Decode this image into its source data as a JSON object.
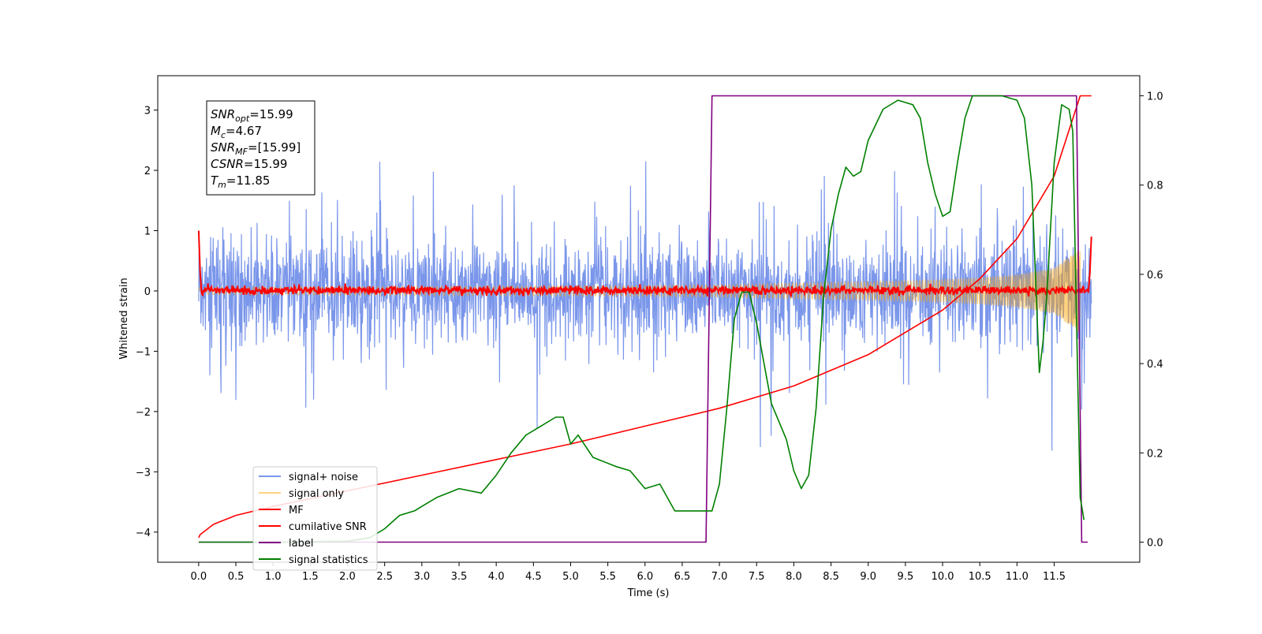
{
  "chart_data": {
    "type": "line",
    "xlabel": "Time (s)",
    "ylabel": "Whitened strain",
    "xlim": [
      -0.55,
      12.65
    ],
    "ylim": [
      -4.5,
      3.57
    ],
    "y2lim": [
      -0.045,
      1.045
    ],
    "xticks": [
      "0.0",
      "0.5",
      "1.0",
      "1.5",
      "2.0",
      "2.5",
      "3.0",
      "3.5",
      "4.0",
      "4.5",
      "5.0",
      "5.5",
      "6.0",
      "6.5",
      "7.0",
      "7.5",
      "8.0",
      "8.5",
      "9.0",
      "9.5",
      "10.0",
      "10.5",
      "11.0",
      "11.5"
    ],
    "yticks": [
      "3",
      "2",
      "1",
      "0",
      "−1",
      "−2",
      "−3",
      "−4"
    ],
    "y2ticks": [
      "1.0",
      "0.8",
      "0.6",
      "0.4",
      "0.2",
      "0.0"
    ],
    "grid": false,
    "legend_position": "lower-left",
    "info_box": {
      "lines": [
        {
          "sym": "SNR",
          "sub": "opt",
          "value": "=15.99"
        },
        {
          "sym": "M",
          "sub": "c",
          "value": "=4.67"
        },
        {
          "sym": "SNR",
          "sub": "MF",
          "value": "=[15.99]"
        },
        {
          "sym": "CSNR",
          "sub": "",
          "value": "=15.99"
        },
        {
          "sym": "T",
          "sub": "m",
          "value": "=11.85"
        }
      ]
    },
    "series": [
      {
        "name": "signal+ noise",
        "color": "#4169e1",
        "axis": "left",
        "kind": "noise",
        "envelope": [
          1.0,
          1.9
        ],
        "x_range": [
          0.0,
          12.0
        ]
      },
      {
        "name": "signal only",
        "color": "#ffa500",
        "axis": "left",
        "kind": "chirp_envelope",
        "x": [
          0.0,
          6.0,
          7.0,
          8.0,
          9.0,
          10.0,
          10.5,
          11.0,
          11.5,
          11.85
        ],
        "amplitude": [
          0.06,
          0.09,
          0.1,
          0.13,
          0.15,
          0.19,
          0.22,
          0.27,
          0.38,
          0.7
        ]
      },
      {
        "name": "MF",
        "color": "#ff0000",
        "axis": "left",
        "kind": "noise",
        "envelope": [
          0.05,
          0.08
        ],
        "x_range": [
          0.0,
          12.0
        ]
      },
      {
        "name": "cumilative SNR",
        "color": "#ff0000",
        "axis": "right",
        "x": [
          0.0,
          0.02,
          0.2,
          0.5,
          1.0,
          2.0,
          3.0,
          4.0,
          5.0,
          6.0,
          7.0,
          8.0,
          9.0,
          10.0,
          10.5,
          11.0,
          11.5,
          11.85,
          12.0
        ],
        "y": [
          0.01,
          0.017,
          0.04,
          0.06,
          0.08,
          0.115,
          0.15,
          0.185,
          0.22,
          0.26,
          0.3,
          0.35,
          0.42,
          0.52,
          0.59,
          0.68,
          0.82,
          1.0,
          1.0
        ]
      },
      {
        "name": "label",
        "color": "#800080",
        "axis": "right",
        "x": [
          0.0,
          6.82,
          6.9,
          11.8,
          11.87,
          11.95
        ],
        "y": [
          0.0,
          0.0,
          1.0,
          1.0,
          0.0,
          0.0
        ]
      },
      {
        "name": "signal statistics",
        "color": "#008000",
        "axis": "right",
        "x": [
          0.0,
          1.0,
          2.0,
          2.3,
          2.5,
          2.7,
          2.9,
          3.0,
          3.2,
          3.5,
          3.8,
          4.0,
          4.2,
          4.4,
          4.6,
          4.8,
          4.9,
          5.0,
          5.1,
          5.3,
          5.6,
          5.8,
          6.0,
          6.2,
          6.4,
          6.6,
          6.8,
          6.9,
          7.0,
          7.1,
          7.2,
          7.3,
          7.4,
          7.5,
          7.6,
          7.7,
          7.8,
          7.9,
          8.0,
          8.1,
          8.2,
          8.3,
          8.4,
          8.5,
          8.6,
          8.7,
          8.8,
          8.9,
          9.0,
          9.2,
          9.4,
          9.6,
          9.7,
          9.8,
          9.9,
          10.0,
          10.1,
          10.2,
          10.3,
          10.4,
          10.5,
          10.6,
          10.8,
          11.0,
          11.1,
          11.2,
          11.3,
          11.35,
          11.4,
          11.5,
          11.6,
          11.7,
          11.75,
          11.8,
          11.85,
          11.9
        ],
        "y": [
          0.0,
          0.0,
          0.002,
          0.01,
          0.03,
          0.06,
          0.07,
          0.08,
          0.1,
          0.12,
          0.11,
          0.15,
          0.2,
          0.24,
          0.26,
          0.28,
          0.28,
          0.22,
          0.24,
          0.19,
          0.17,
          0.16,
          0.12,
          0.13,
          0.07,
          0.07,
          0.07,
          0.07,
          0.13,
          0.3,
          0.5,
          0.56,
          0.56,
          0.49,
          0.4,
          0.31,
          0.27,
          0.23,
          0.16,
          0.12,
          0.15,
          0.3,
          0.55,
          0.7,
          0.78,
          0.84,
          0.82,
          0.83,
          0.9,
          0.97,
          0.99,
          0.98,
          0.95,
          0.85,
          0.78,
          0.73,
          0.74,
          0.85,
          0.95,
          1.0,
          1.0,
          1.0,
          1.0,
          0.99,
          0.95,
          0.8,
          0.38,
          0.45,
          0.55,
          0.85,
          0.98,
          0.97,
          0.92,
          0.5,
          0.1,
          0.05
        ]
      }
    ]
  }
}
